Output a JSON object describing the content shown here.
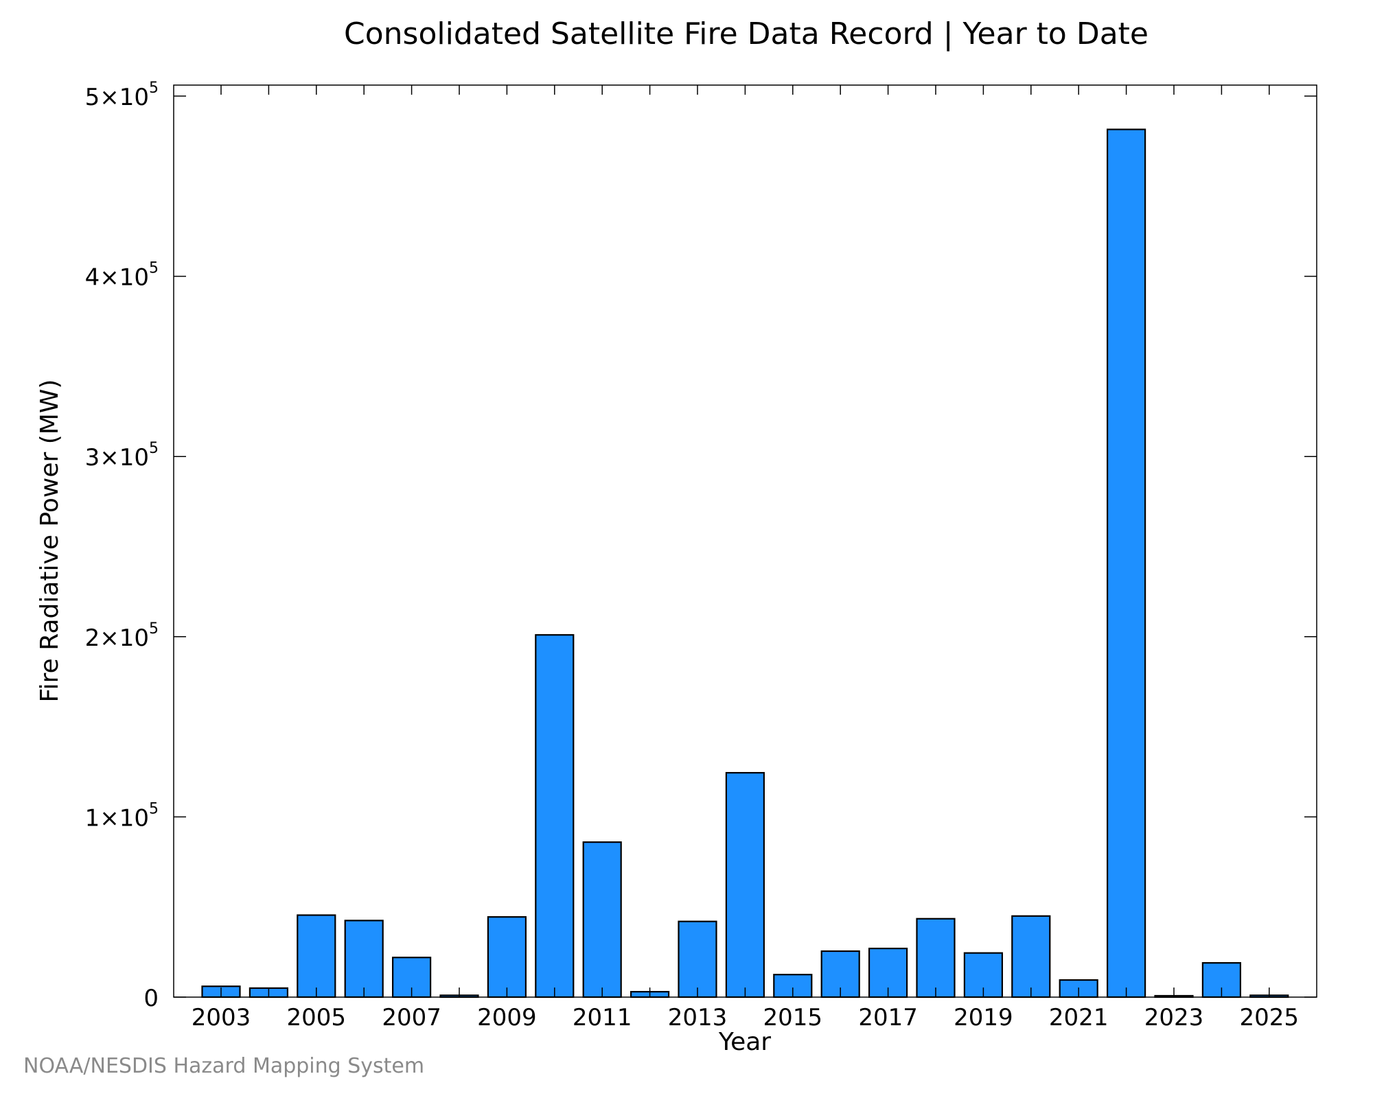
{
  "chart_data": {
    "type": "bar",
    "title": "Consolidated Satellite Fire Data Record | Year to Date",
    "xlabel": "Year",
    "ylabel": "Fire Radiative Power (MW)",
    "ylim": [
      0,
      500000
    ],
    "yticks": [
      {
        "value": 0,
        "label": "0"
      },
      {
        "value": 100000,
        "mantissa": "1",
        "exponent": "5"
      },
      {
        "value": 200000,
        "mantissa": "2",
        "exponent": "5"
      },
      {
        "value": 300000,
        "mantissa": "3",
        "exponent": "5"
      },
      {
        "value": 400000,
        "mantissa": "4",
        "exponent": "5"
      },
      {
        "value": 500000,
        "mantissa": "5",
        "exponent": "5"
      }
    ],
    "xtick_labels": [
      "2003",
      "2005",
      "2007",
      "2009",
      "2011",
      "2013",
      "2015",
      "2017",
      "2019",
      "2021",
      "2023",
      "2025"
    ],
    "categories": [
      "2003",
      "2004",
      "2005",
      "2006",
      "2007",
      "2008",
      "2009",
      "2010",
      "2011",
      "2012",
      "2013",
      "2014",
      "2015",
      "2016",
      "2017",
      "2018",
      "2019",
      "2020",
      "2021",
      "2022",
      "2023",
      "2024",
      "2025"
    ],
    "values": [
      6000,
      5000,
      45500,
      42500,
      22000,
      1000,
      44500,
      201000,
      86000,
      3000,
      42000,
      124500,
      12500,
      25500,
      27000,
      43500,
      24500,
      45000,
      9500,
      481500,
      500,
      19000,
      1000
    ],
    "bar_color": "#1e90ff",
    "grid": false,
    "legend": "none"
  },
  "footer": "NOAA/NESDIS Hazard Mapping System"
}
